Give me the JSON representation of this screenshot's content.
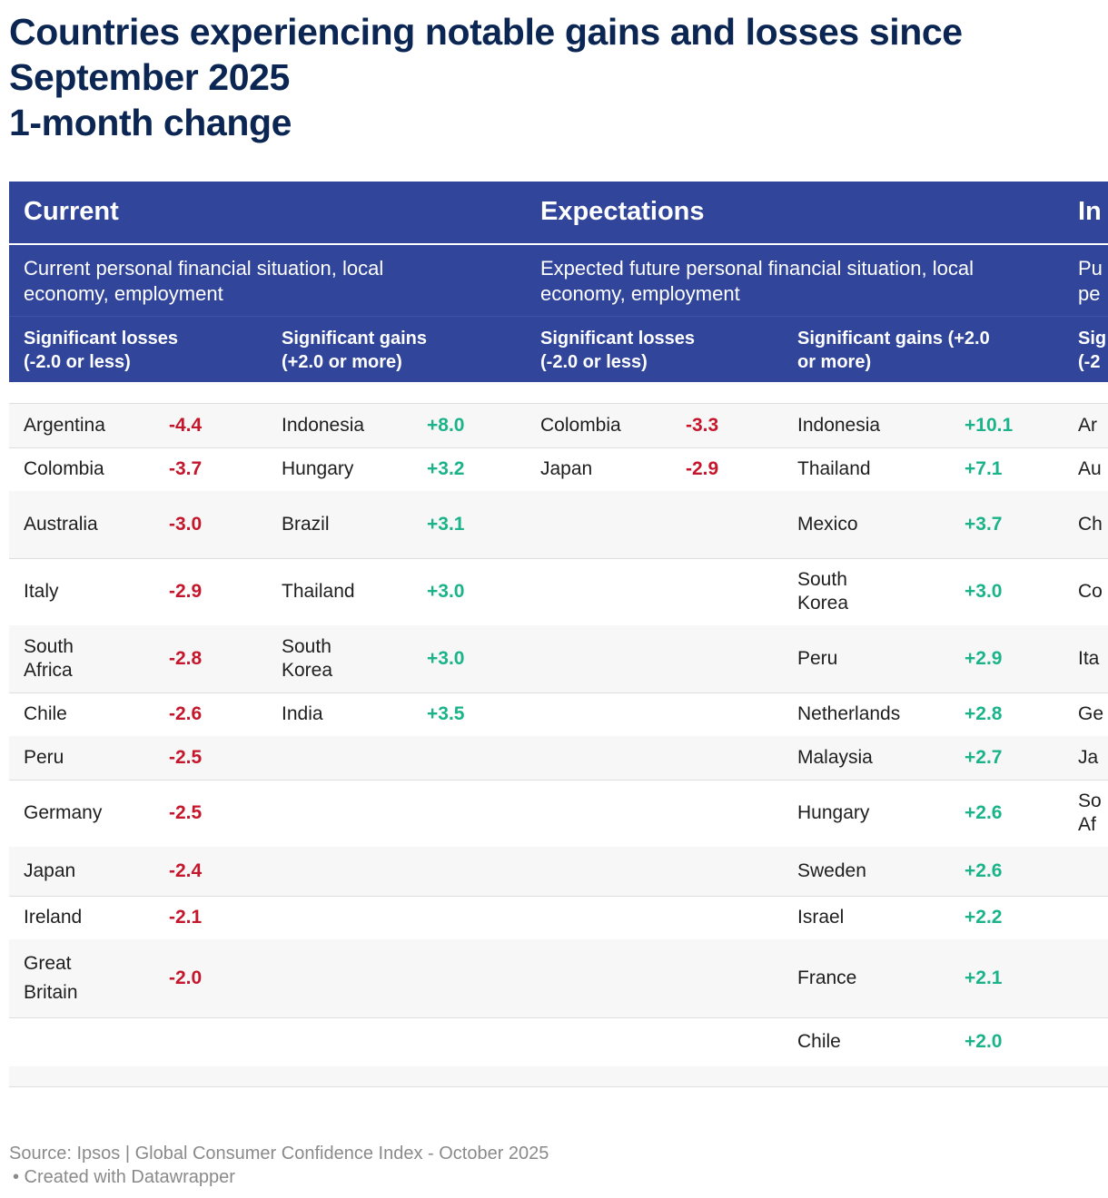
{
  "title": {
    "line1": "Countries experiencing notable gains and losses since",
    "line2": "September 2025",
    "line3": "1-month change"
  },
  "colors": {
    "header_bg": "#31469b",
    "loss": "#c4172c",
    "gain": "#1bb38a",
    "title": "#0b2653"
  },
  "groups": [
    {
      "name": "Current",
      "desc_line1": "Current personal financial situation, local",
      "desc_line2": "economy, employment",
      "losses_l1": "Significant losses",
      "losses_l2": "(-2.0 or less)",
      "gains_l1": "Significant gains",
      "gains_l2": "(+2.0 or more)"
    },
    {
      "name": "Expectations",
      "desc_line1": "Expected future personal financial situation, local",
      "desc_line2": "economy, employment",
      "losses_l1": "Significant losses",
      "losses_l2": "(-2.0 or less)",
      "gains_l1": "Significant gains (+2.0",
      "gains_l2": "or more)"
    },
    {
      "name": "In",
      "desc_line1": "Pu",
      "desc_line2": "pe",
      "losses_l1": "Sig",
      "losses_l2": "(-2"
    }
  ],
  "chart_data": {
    "type": "table",
    "title": "Countries experiencing notable gains and losses since September 2025 — 1-month change",
    "current_losses": [
      [
        "Argentina",
        "-4.4"
      ],
      [
        "Colombia",
        "-3.7"
      ],
      [
        "Australia",
        "-3.0"
      ],
      [
        "Italy",
        "-2.9"
      ],
      [
        "South Africa",
        "-2.8"
      ],
      [
        "Chile",
        "-2.6"
      ],
      [
        "Peru",
        "-2.5"
      ],
      [
        "Germany",
        "-2.5"
      ],
      [
        "Japan",
        "-2.4"
      ],
      [
        "Ireland",
        "-2.1"
      ],
      [
        "Great Britain",
        "-2.0"
      ]
    ],
    "current_gains": [
      [
        "Indonesia",
        "+8.0"
      ],
      [
        "Hungary",
        "+3.2"
      ],
      [
        "Brazil",
        "+3.1"
      ],
      [
        "Thailand",
        "+3.0"
      ],
      [
        "South Korea",
        "+3.0"
      ],
      [
        "India",
        "+3.5"
      ]
    ],
    "expectations_losses": [
      [
        "Colombia",
        "-3.3"
      ],
      [
        "Japan",
        "-2.9"
      ]
    ],
    "expectations_gains": [
      [
        "Indonesia",
        "+10.1"
      ],
      [
        "Thailand",
        "+7.1"
      ],
      [
        "Mexico",
        "+3.7"
      ],
      [
        "South Korea",
        "+3.0"
      ],
      [
        "Peru",
        "+2.9"
      ],
      [
        "Netherlands",
        "+2.8"
      ],
      [
        "Malaysia",
        "+2.7"
      ],
      [
        "Hungary",
        "+2.6"
      ],
      [
        "Sweden",
        "+2.6"
      ],
      [
        "Israel",
        "+2.2"
      ],
      [
        "France",
        "+2.1"
      ],
      [
        "Chile",
        "+2.0"
      ]
    ],
    "third_group_partial": [
      "Ar",
      "Au",
      "Ch",
      "Co",
      "Ita",
      "Ge",
      "Ja",
      "So Af"
    ]
  },
  "source": "Source: Ipsos | Global Consumer Confidence Index - October 2025",
  "credit": "• Created with Datawrapper"
}
